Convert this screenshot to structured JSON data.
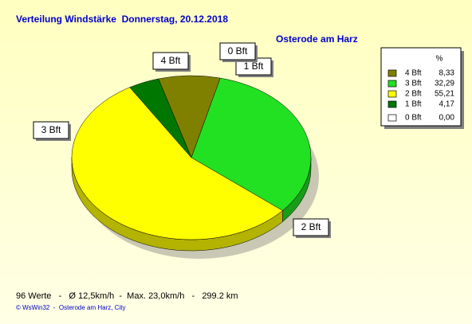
{
  "chart_data": {
    "type": "pie",
    "title": "Verteilung Windstärke  Donnerstag, 20.12.2018",
    "subtitle": "Osterode am Harz",
    "legend_header": "%",
    "categories": [
      "4 Bft",
      "3 Bft",
      "2 Bft",
      "1 Bft",
      "0 Bft"
    ],
    "values": [
      8.33,
      32.29,
      55.21,
      4.17,
      0.0
    ],
    "value_labels": [
      "8,33",
      "32,29",
      "55,21",
      "4,17",
      "0,00"
    ],
    "colors": [
      "#808000",
      "#22e022",
      "#ffff00",
      "#007700",
      "#ffffff"
    ],
    "legend": "top-right",
    "footer": "96 Werte   -   Ø 12,5km/h  -  Max. 23,0km/h   -   299.2 km",
    "credit": "© WsWin32  -  Osterode am Harz, City"
  }
}
